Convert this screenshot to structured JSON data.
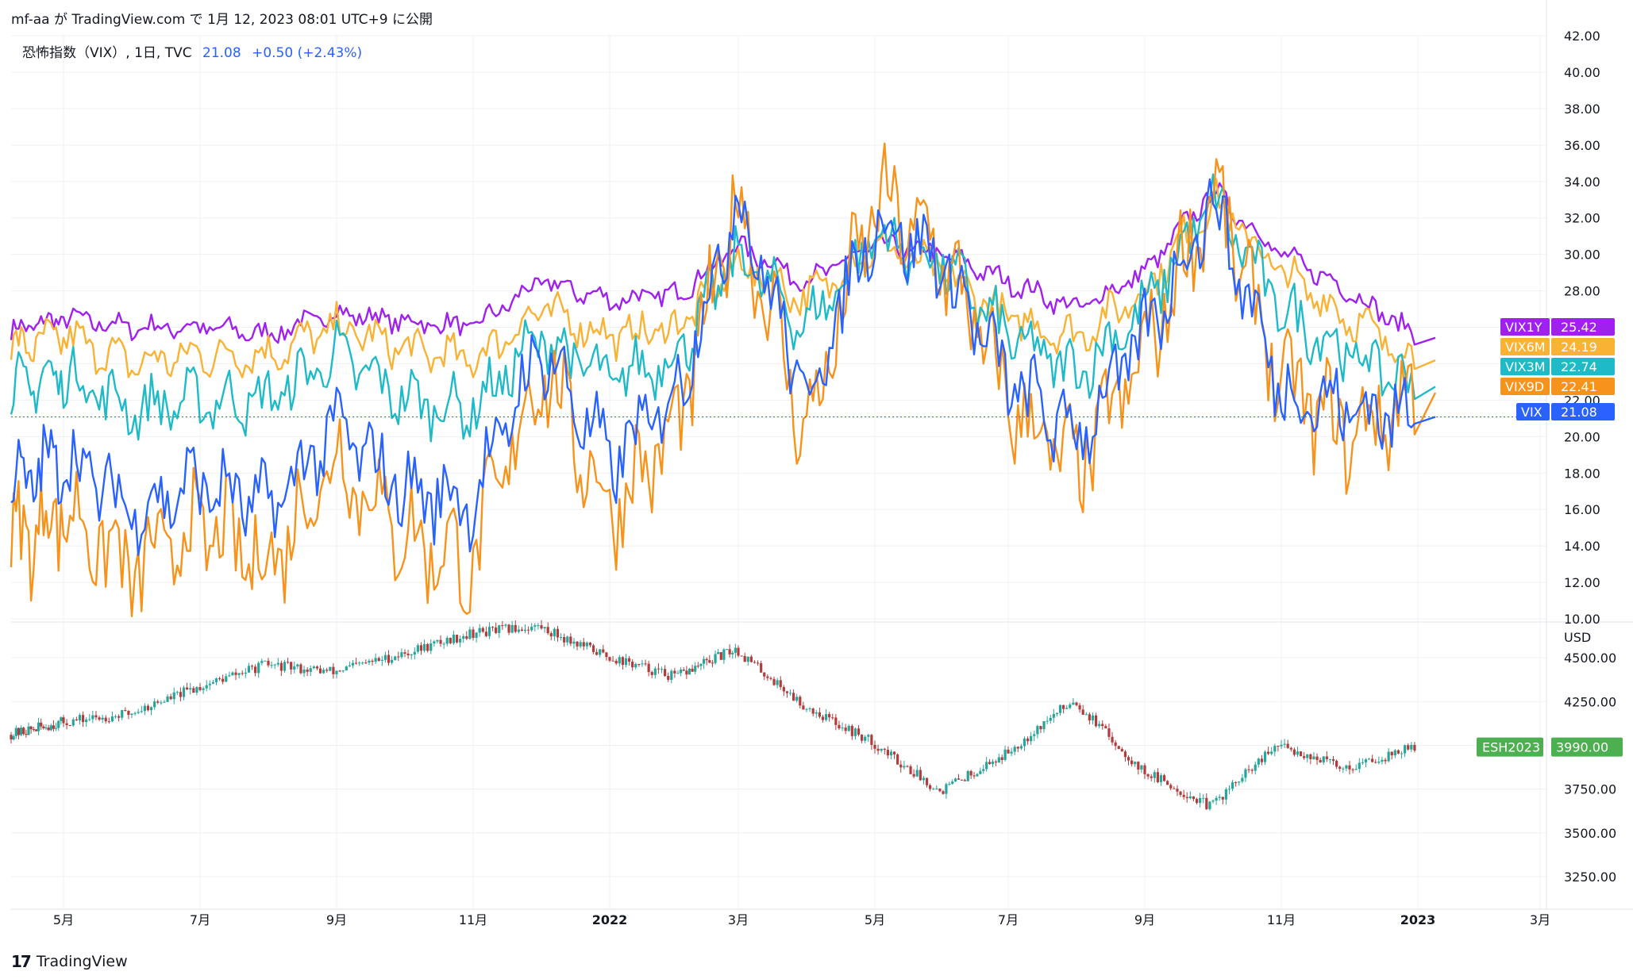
{
  "header": {
    "text": "mf-aa が TradingView.com で 1月 12, 2023 08:01 UTC+9 に公開"
  },
  "legend": {
    "symbol": "恐怖指数（VIX）, 1日, TVC",
    "last": "21.08",
    "change": "+0.50 (+2.43%)"
  },
  "footer": {
    "brand": "TradingView",
    "logo": "17"
  },
  "colors": {
    "VIX1Y": "#a020f0",
    "VIX6M": "#f9b233",
    "VIX3M": "#1fbac8",
    "VIX9D": "#f7931a",
    "VIX": "#2962ff",
    "ESH2023": "#4caf50",
    "up": "#26a69a",
    "down": "#b23b3b",
    "grid": "#eef0f3"
  },
  "chart_data": [
    {
      "type": "line",
      "title": "恐怖指数（VIX）, 1日, TVC",
      "y_ticks": [
        "42.00",
        "40.00",
        "38.00",
        "36.00",
        "34.00",
        "32.00",
        "30.00",
        "28.00",
        "26.00",
        "24.00",
        "22.00",
        "20.00",
        "18.00",
        "16.00",
        "14.00",
        "12.00",
        "10.00"
      ],
      "ylim": [
        10,
        42
      ],
      "x_ticks": [
        "5月",
        "7月",
        "9月",
        "11月",
        "2022",
        "3月",
        "5月",
        "7月",
        "9月",
        "11月",
        "2023",
        "3月"
      ],
      "x": [
        "2021-04",
        "2021-05",
        "2021-06",
        "2021-07",
        "2021-08",
        "2021-09",
        "2021-10",
        "2021-11",
        "2021-12",
        "2022-01",
        "2022-02",
        "2022-03",
        "2022-04",
        "2022-05",
        "2022-06",
        "2022-07",
        "2022-08",
        "2022-09",
        "2022-10",
        "2022-11",
        "2022-12",
        "2023-01"
      ],
      "series": [
        {
          "name": "VIX1Y",
          "last": "25.42",
          "values": [
            25.8,
            26.5,
            26.0,
            26.0,
            25.6,
            26.8,
            26.3,
            26.0,
            28.5,
            27.5,
            27.8,
            30.5,
            28.5,
            30.5,
            30.0,
            28.5,
            27.0,
            29.0,
            33.5,
            30.0,
            28.0,
            25.42
          ]
        },
        {
          "name": "VIX6M",
          "last": "24.19",
          "values": [
            24.8,
            25.5,
            24.0,
            24.5,
            24.5,
            26.0,
            24.8,
            24.2,
            27.0,
            25.5,
            26.0,
            29.5,
            27.5,
            30.5,
            29.0,
            26.5,
            25.5,
            28.0,
            33.0,
            29.0,
            26.5,
            24.19
          ]
        },
        {
          "name": "VIX3M",
          "last": "22.74",
          "values": [
            22.5,
            23.5,
            21.5,
            22.0,
            22.0,
            24.5,
            22.0,
            21.5,
            25.5,
            23.0,
            24.5,
            30.0,
            26.0,
            31.0,
            29.5,
            25.5,
            23.5,
            27.0,
            33.0,
            27.0,
            24.5,
            22.74
          ]
        },
        {
          "name": "VIX9D",
          "last": "22.41",
          "values": [
            14.0,
            16.0,
            12.5,
            15.0,
            13.0,
            19.0,
            14.5,
            13.0,
            24.0,
            16.0,
            20.5,
            33.0,
            20.0,
            33.0,
            30.0,
            22.0,
            18.0,
            24.5,
            33.5,
            23.0,
            20.0,
            22.41
          ]
        },
        {
          "name": "VIX",
          "last": "21.08",
          "values": [
            17.0,
            19.0,
            16.0,
            17.5,
            16.0,
            20.5,
            17.0,
            16.5,
            25.0,
            18.5,
            22.5,
            33.0,
            22.0,
            32.0,
            29.5,
            23.0,
            20.0,
            25.5,
            33.0,
            22.5,
            21.5,
            21.08
          ]
        }
      ]
    },
    {
      "type": "candlestick",
      "title": "ESH2023",
      "unit": "USD",
      "y_ticks": [
        "4500.00",
        "4250.00",
        "4000.00",
        "3750.00",
        "3500.00",
        "3250.00"
      ],
      "ylim": [
        3100,
        4700
      ],
      "x": [
        "2021-04",
        "2021-05",
        "2021-06",
        "2021-07",
        "2021-08",
        "2021-09",
        "2021-10",
        "2021-11",
        "2021-12",
        "2022-01",
        "2022-02",
        "2022-03",
        "2022-04",
        "2022-05",
        "2022-06",
        "2022-07",
        "2022-08",
        "2022-09",
        "2022-10",
        "2022-11",
        "2022-12",
        "2023-01"
      ],
      "close": [
        4060,
        4130,
        4180,
        4330,
        4460,
        4420,
        4520,
        4640,
        4680,
        4510,
        4390,
        4550,
        4230,
        4020,
        3740,
        3950,
        4260,
        3860,
        3650,
        4000,
        3870,
        3990
      ],
      "last": "3990.00"
    }
  ]
}
